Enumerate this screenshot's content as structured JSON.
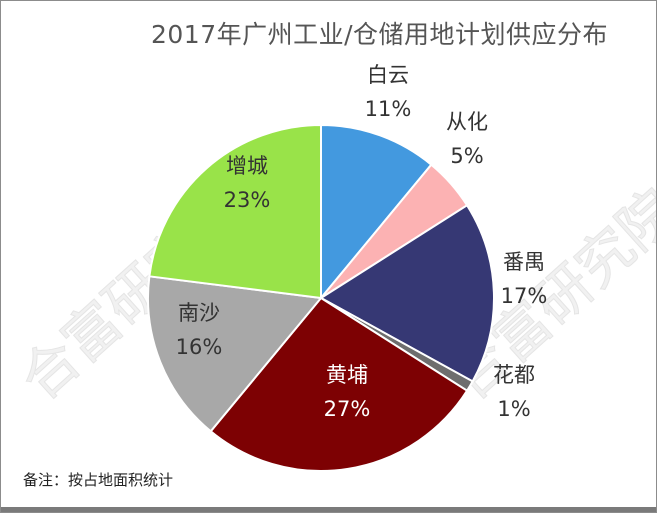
{
  "chart_data": {
    "type": "pie",
    "title": "2017年广州工业/仓储用地计划供应分布",
    "slices": [
      {
        "name": "白云",
        "value": 11,
        "label": "11%",
        "color": "#4399df"
      },
      {
        "name": "从化",
        "value": 5,
        "label": "5%",
        "color": "#fcb2b3"
      },
      {
        "name": "番禺",
        "value": 17,
        "label": "17%",
        "color": "#363874"
      },
      {
        "name": "花都",
        "value": 1,
        "label": "1%",
        "color": "#6e6e6e"
      },
      {
        "name": "黄埔",
        "value": 27,
        "label": "27%",
        "color": "#7d0103"
      },
      {
        "name": "南沙",
        "value": 16,
        "label": "16%",
        "color": "#a8a8a8"
      },
      {
        "name": "增城",
        "value": 23,
        "label": "23%",
        "color": "#99e349"
      }
    ]
  },
  "note": "备注：按占地面积统计",
  "watermark": "合富研究院"
}
